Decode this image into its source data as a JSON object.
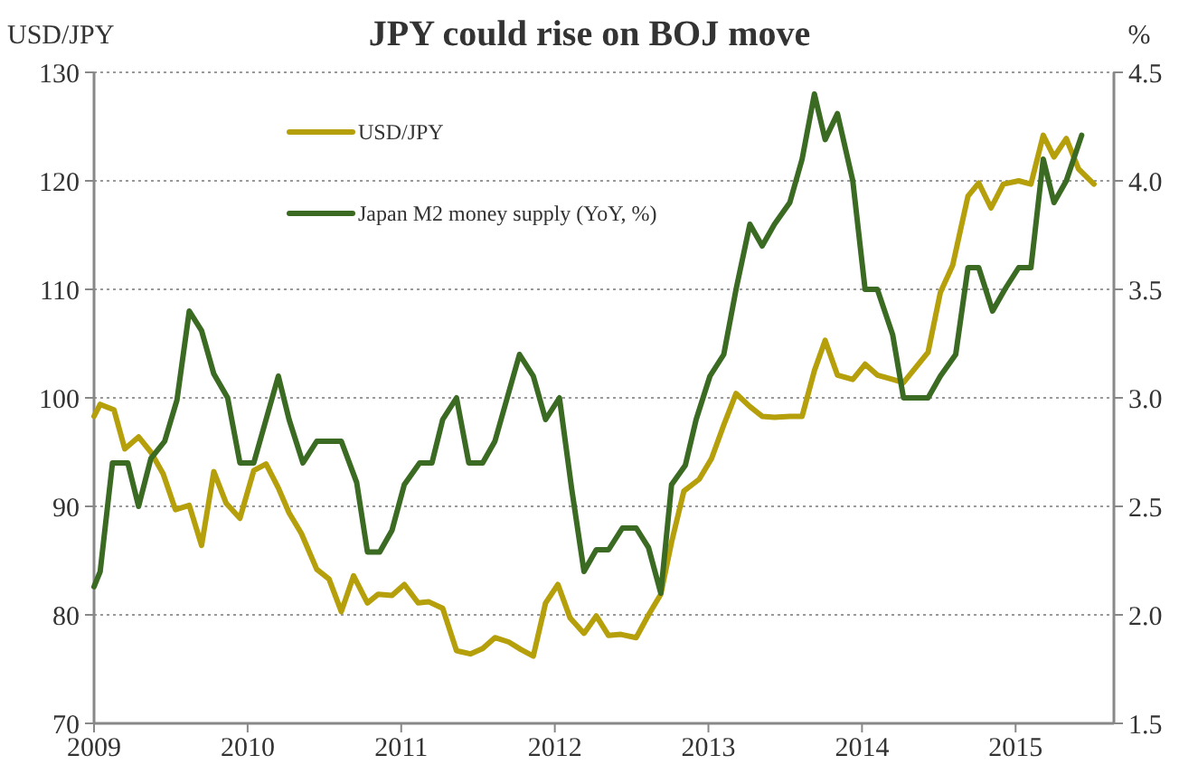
{
  "chart_data": {
    "type": "line",
    "title": "JPY could rise on BOJ move",
    "ylabel": "USD/JPY",
    "y2label": "%",
    "xlim": [
      2009,
      2015.64
    ],
    "xticks": [
      2009,
      2010,
      2011,
      2012,
      2013,
      2014,
      2015
    ],
    "ylim": [
      70,
      130
    ],
    "yticks": [
      70,
      80,
      90,
      100,
      110,
      120,
      130
    ],
    "y2lim": [
      1.5,
      4.5
    ],
    "y2ticks": [
      {
        "value": 1.5,
        "label": "1.5"
      },
      {
        "value": 2,
        "label": "2.0"
      },
      {
        "value": 2.5,
        "label": "2.5"
      },
      {
        "value": 3,
        "label": "3.0"
      },
      {
        "value": 3.5,
        "label": "3.5"
      },
      {
        "value": 4,
        "label": "4.0"
      },
      {
        "value": 4.5,
        "label": "4.5"
      }
    ],
    "grid": "y",
    "legend": "top left",
    "marker": "none",
    "line_style": "solid",
    "series": [
      {
        "name": "USD/JPY",
        "color": "#b59f0a",
        "x": [
          2009.0,
          2009.04,
          2009.13,
          2009.2,
          2009.29,
          2009.37,
          2009.45,
          2009.53,
          2009.62,
          2009.7,
          2009.78,
          2009.86,
          2009.95,
          2010.04,
          2010.12,
          2010.2,
          2010.27,
          2010.35,
          2010.45,
          2010.53,
          2010.61,
          2010.69,
          2010.78,
          2010.85,
          2010.94,
          2011.02,
          2011.11,
          2011.18,
          2011.27,
          2011.36,
          2011.45,
          2011.53,
          2011.61,
          2011.7,
          2011.78,
          2011.86,
          2011.94,
          2012.02,
          2012.1,
          2012.19,
          2012.27,
          2012.35,
          2012.43,
          2012.53,
          2012.61,
          2012.69,
          2012.76,
          2012.84,
          2012.94,
          2013.02,
          2013.1,
          2013.18,
          2013.27,
          2013.35,
          2013.43,
          2013.53,
          2013.61,
          2013.69,
          2013.76,
          2013.84,
          2013.94,
          2014.02,
          2014.1,
          2014.2,
          2014.27,
          2014.35,
          2014.43,
          2014.51,
          2014.59,
          2014.69,
          2014.76,
          2014.84,
          2014.92,
          2015.02,
          2015.1,
          2015.18,
          2015.25,
          2015.33,
          2015.41,
          2015.51
        ],
        "values": [
          98.3,
          99.4,
          98.9,
          95.3,
          96.4,
          95,
          93,
          89.7,
          90.1,
          86.4,
          93.2,
          90.3,
          88.9,
          93.3,
          93.9,
          91.7,
          89.4,
          87.5,
          84.2,
          83.3,
          80.3,
          83.6,
          81.1,
          81.9,
          81.8,
          82.8,
          81.1,
          81.2,
          80.6,
          76.7,
          76.4,
          76.9,
          77.9,
          77.5,
          76.8,
          76.2,
          81.1,
          82.8,
          79.7,
          78.3,
          79.9,
          78.1,
          78.2,
          77.9,
          80,
          81.9,
          86.7,
          91.4,
          92.5,
          94.4,
          97.5,
          100.4,
          99.2,
          98.3,
          98.2,
          98.3,
          98.3,
          102.5,
          105.3,
          102.1,
          101.7,
          103.1,
          102.1,
          101.7,
          101.4,
          102.8,
          104.2,
          109.7,
          112.2,
          118.6,
          119.8,
          117.5,
          119.7,
          120,
          119.7,
          124.2,
          122.2,
          123.9,
          121.1,
          119.7
        ]
      },
      {
        "name": "Japan M2 money supply (YoY, %)",
        "color": "#3b6a22",
        "axis": "y2",
        "x": [
          2009.0,
          2009.04,
          2009.12,
          2009.22,
          2009.29,
          2009.37,
          2009.46,
          2009.54,
          2009.62,
          2009.7,
          2009.78,
          2009.87,
          2009.95,
          2010.04,
          2010.12,
          2010.2,
          2010.27,
          2010.36,
          2010.45,
          2010.53,
          2010.61,
          2010.71,
          2010.78,
          2010.86,
          2010.94,
          2011.02,
          2011.12,
          2011.2,
          2011.27,
          2011.36,
          2011.44,
          2011.53,
          2011.61,
          2011.69,
          2011.77,
          2011.86,
          2011.94,
          2012.03,
          2012.11,
          2012.19,
          2012.27,
          2012.35,
          2012.44,
          2012.53,
          2012.61,
          2012.69,
          2012.76,
          2012.85,
          2012.92,
          2013.01,
          2013.1,
          2013.18,
          2013.27,
          2013.35,
          2013.43,
          2013.53,
          2013.61,
          2013.69,
          2013.76,
          2013.84,
          2013.94,
          2014.02,
          2014.1,
          2014.2,
          2014.27,
          2014.35,
          2014.43,
          2014.51,
          2014.61,
          2014.69,
          2014.76,
          2014.85,
          2014.93,
          2015.02,
          2015.1,
          2015.18,
          2015.25,
          2015.33,
          2015.43
        ],
        "values": [
          2.13,
          2.2,
          2.7,
          2.7,
          2.5,
          2.72,
          2.8,
          2.99,
          3.4,
          3.31,
          3.11,
          3.0,
          2.7,
          2.7,
          2.9,
          3.1,
          2.9,
          2.7,
          2.8,
          2.8,
          2.8,
          2.61,
          2.29,
          2.29,
          2.39,
          2.6,
          2.7,
          2.7,
          2.9,
          3.0,
          2.7,
          2.7,
          2.8,
          3.0,
          3.2,
          3.1,
          2.9,
          3.0,
          2.58,
          2.2,
          2.3,
          2.3,
          2.4,
          2.4,
          2.31,
          2.1,
          2.6,
          2.69,
          2.9,
          3.1,
          3.2,
          3.5,
          3.8,
          3.7,
          3.8,
          3.9,
          4.1,
          4.4,
          4.19,
          4.31,
          4.0,
          3.5,
          3.5,
          3.29,
          3.0,
          3.0,
          3.0,
          3.1,
          3.2,
          3.6,
          3.6,
          3.4,
          3.5,
          3.6,
          3.6,
          4.1,
          3.9,
          4.0,
          4.21
        ]
      }
    ]
  }
}
